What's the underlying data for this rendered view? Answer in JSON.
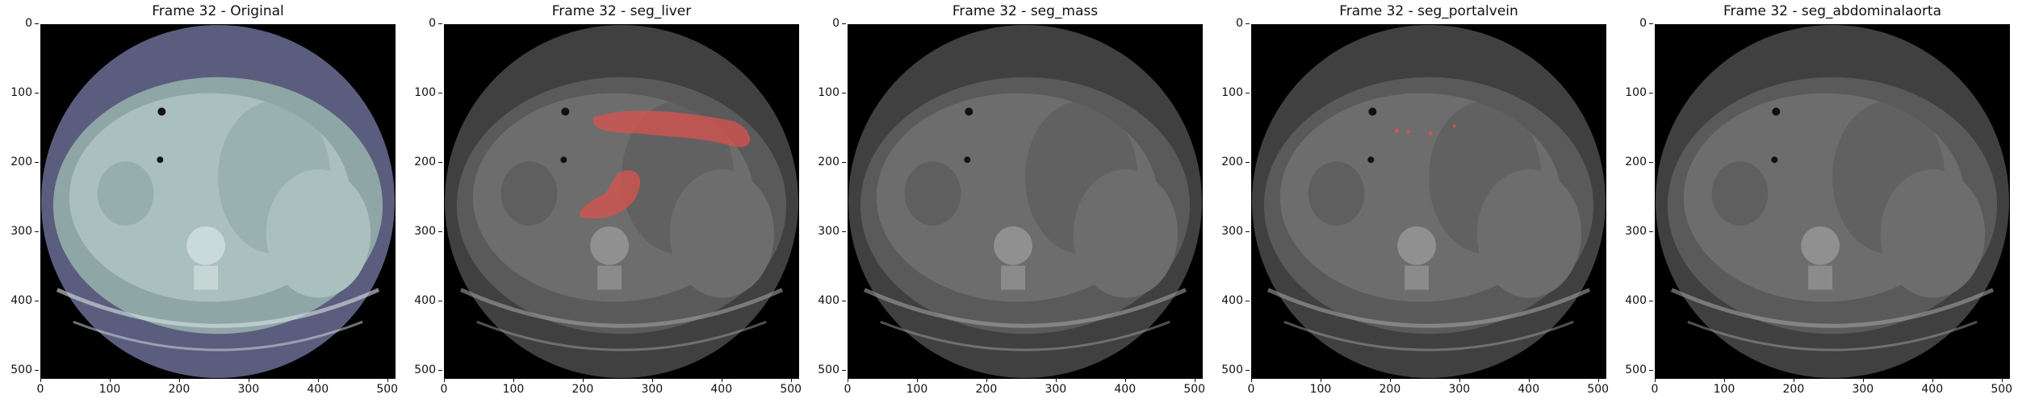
{
  "panels": [
    {
      "title": "Frame 32 - Original",
      "overlay": "none",
      "tint": "#6a6e8e"
    },
    {
      "title": "Frame 32 - seg_liver",
      "overlay": "liver",
      "tint": "#606060"
    },
    {
      "title": "Frame 32 - seg_mass",
      "overlay": "none",
      "tint": "#606060"
    },
    {
      "title": "Frame 32 - seg_portalvein",
      "overlay": "portal",
      "tint": "#606060"
    },
    {
      "title": "Frame 32 - seg_abdominalaorta",
      "overlay": "none",
      "tint": "#606060"
    }
  ],
  "yticks": [
    "0",
    "100",
    "200",
    "300",
    "400",
    "500"
  ],
  "xticks": [
    "0",
    "100",
    "200",
    "300",
    "400",
    "500"
  ],
  "overlay_color": "#d9534f"
}
